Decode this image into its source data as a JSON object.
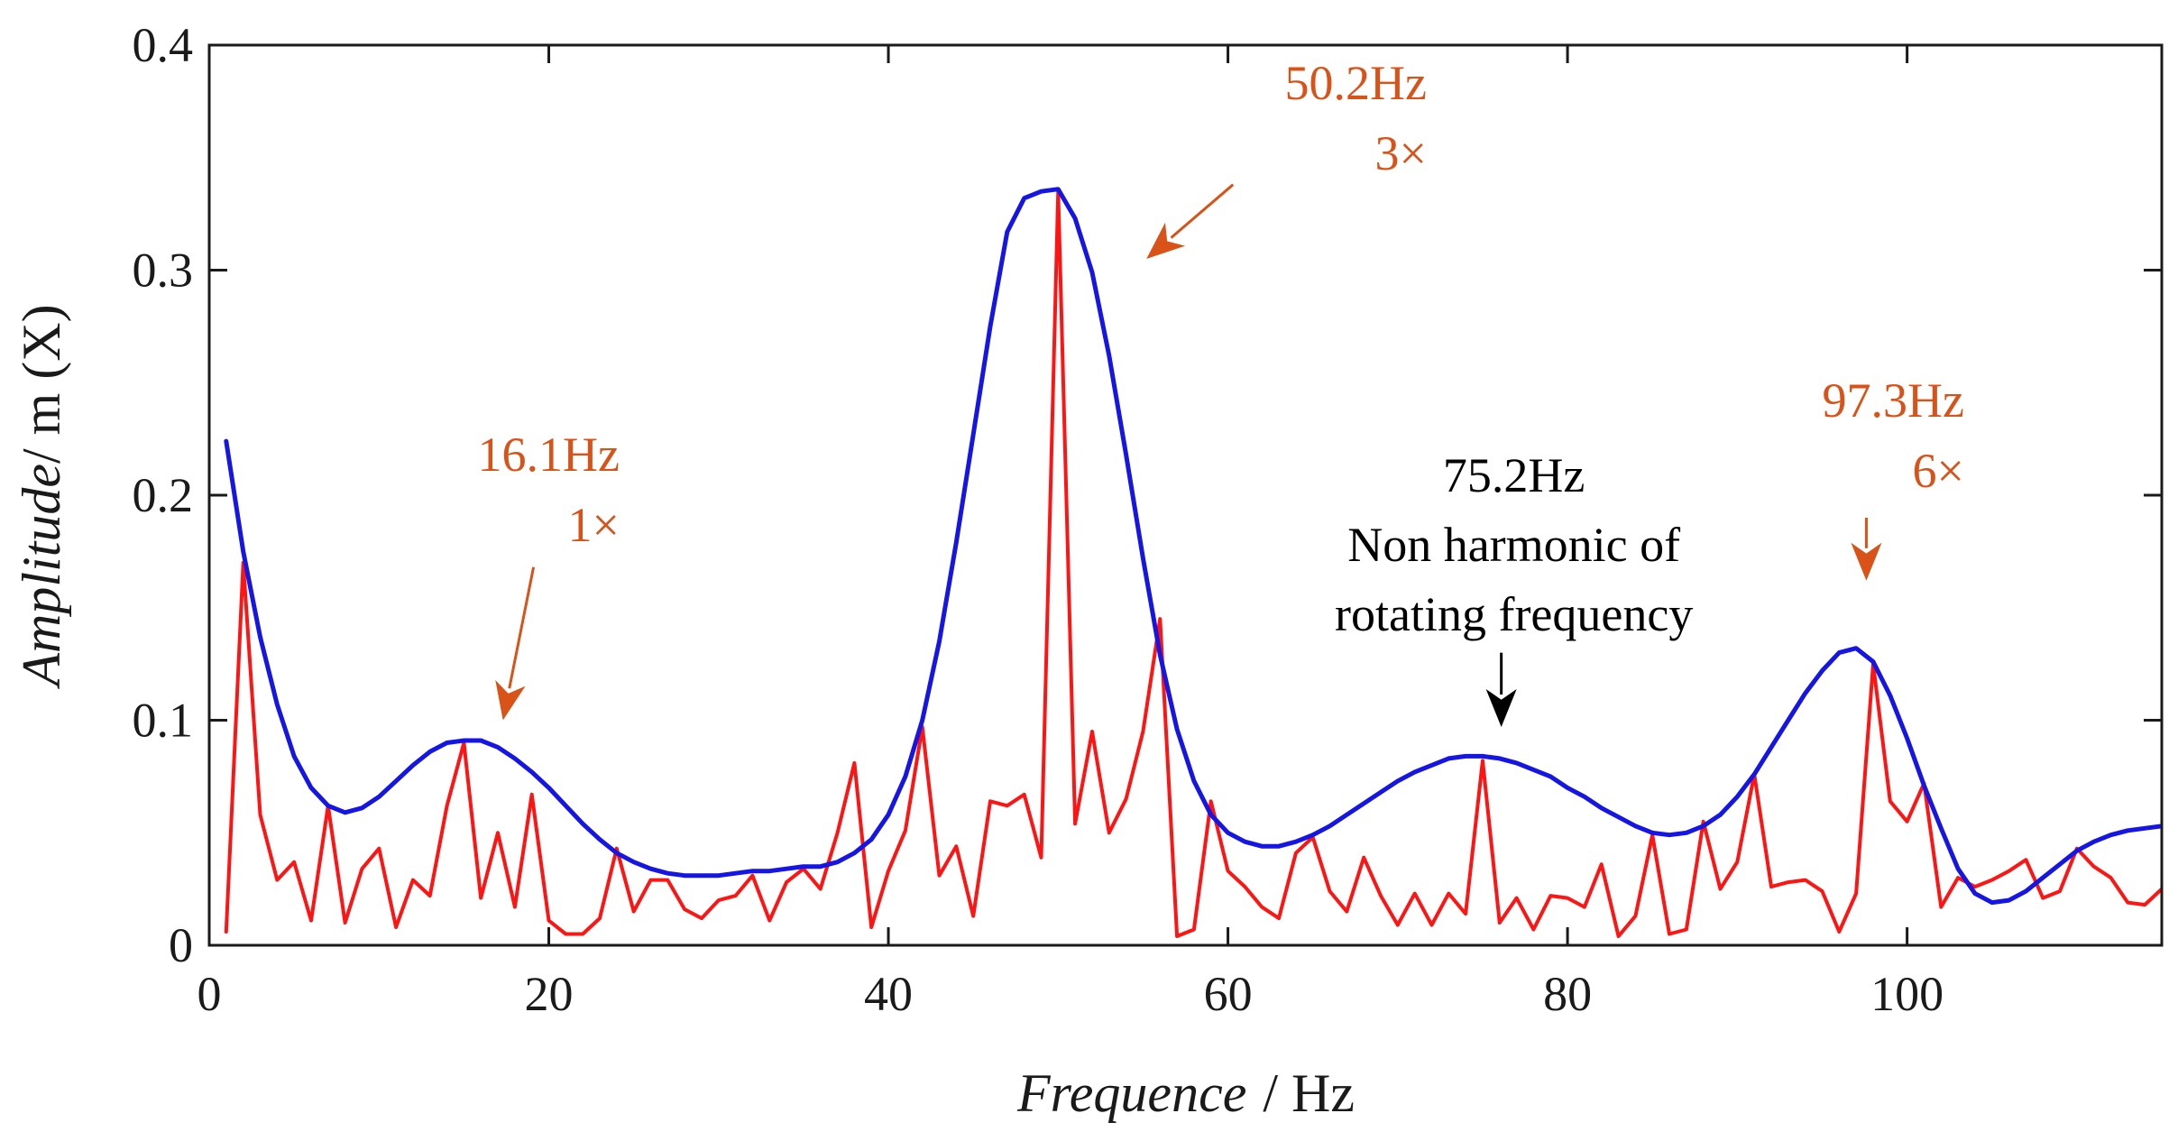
{
  "chart_data": {
    "type": "line",
    "title": "",
    "xlabel": "Frequence",
    "xlabel_unit": "/ Hz",
    "ylabel": "Amplitude",
    "ylabel_unit": "/ m (X)",
    "xlim": [
      0,
      115
    ],
    "ylim": [
      0,
      0.4
    ],
    "xticks": [
      0,
      20,
      40,
      60,
      80,
      100
    ],
    "xtick_labels": [
      "0",
      "20",
      "40",
      "60",
      "80",
      "100"
    ],
    "yticks": [
      0,
      0.1,
      0.2,
      0.3,
      0.4
    ],
    "ytick_labels": [
      "0",
      "0.1",
      "0.2",
      "0.3",
      "0.4"
    ],
    "colors": {
      "spectrum": "#ff1414",
      "envelope": "#1515e6",
      "annotation": "#d95319",
      "annotation_dark": "#000000",
      "axis": "#1a1a1a"
    },
    "series": [
      {
        "name": "spectrum",
        "x": [
          1,
          2,
          3,
          4,
          5,
          6,
          7,
          8,
          9,
          10,
          11,
          12,
          13,
          14,
          15,
          16,
          17,
          18,
          19,
          20,
          21,
          22,
          23,
          24,
          25,
          26,
          27,
          28,
          29,
          30,
          31,
          32,
          33,
          34,
          35,
          36,
          37,
          38,
          39,
          40,
          41,
          42,
          43,
          44,
          45,
          46,
          47,
          48,
          49,
          50,
          51,
          52,
          53,
          54,
          55,
          56,
          57,
          58,
          59,
          60,
          61,
          62,
          63,
          64,
          65,
          66,
          67,
          68,
          69,
          70,
          71,
          72,
          73,
          74,
          75,
          76,
          77,
          78,
          79,
          80,
          81,
          82,
          83,
          84,
          85,
          86,
          87,
          88,
          89,
          90,
          91,
          92,
          93,
          94,
          95,
          96,
          97,
          98,
          99,
          100,
          101,
          102,
          103,
          104,
          105,
          106,
          107,
          108,
          109,
          110,
          111,
          112,
          113,
          114,
          115
        ],
        "values": [
          0.006,
          0.17,
          0.058,
          0.029,
          0.037,
          0.011,
          0.062,
          0.01,
          0.034,
          0.043,
          0.008,
          0.029,
          0.022,
          0.062,
          0.09,
          0.021,
          0.05,
          0.017,
          0.067,
          0.011,
          0.005,
          0.005,
          0.012,
          0.043,
          0.015,
          0.029,
          0.029,
          0.016,
          0.012,
          0.02,
          0.022,
          0.031,
          0.011,
          0.028,
          0.034,
          0.025,
          0.05,
          0.081,
          0.008,
          0.033,
          0.051,
          0.097,
          0.031,
          0.044,
          0.013,
          0.064,
          0.062,
          0.067,
          0.039,
          0.335,
          0.054,
          0.095,
          0.05,
          0.065,
          0.095,
          0.145,
          0.004,
          0.007,
          0.064,
          0.033,
          0.026,
          0.017,
          0.012,
          0.041,
          0.048,
          0.024,
          0.015,
          0.039,
          0.022,
          0.009,
          0.023,
          0.009,
          0.023,
          0.014,
          0.082,
          0.01,
          0.021,
          0.007,
          0.022,
          0.021,
          0.017,
          0.036,
          0.004,
          0.013,
          0.049,
          0.005,
          0.007,
          0.055,
          0.025,
          0.037,
          0.076,
          0.026,
          0.028,
          0.029,
          0.024,
          0.006,
          0.023,
          0.125,
          0.064,
          0.055,
          0.072,
          0.017,
          0.03,
          0.026,
          0.029,
          0.033,
          0.038,
          0.021,
          0.024,
          0.043,
          0.035,
          0.03,
          0.019,
          0.018,
          0.025
        ]
      },
      {
        "name": "envelope",
        "x": [
          1,
          2,
          3,
          4,
          5,
          6,
          7,
          8,
          9,
          10,
          11,
          12,
          13,
          14,
          15,
          16,
          17,
          18,
          19,
          20,
          21,
          22,
          23,
          24,
          25,
          26,
          27,
          28,
          29,
          30,
          31,
          32,
          33,
          34,
          35,
          36,
          37,
          38,
          39,
          40,
          41,
          42,
          43,
          44,
          45,
          46,
          47,
          48,
          49,
          50,
          51,
          52,
          53,
          54,
          55,
          56,
          57,
          58,
          59,
          60,
          61,
          62,
          63,
          64,
          65,
          66,
          67,
          68,
          69,
          70,
          71,
          72,
          73,
          74,
          75,
          76,
          77,
          78,
          79,
          80,
          81,
          82,
          83,
          84,
          85,
          86,
          87,
          88,
          89,
          90,
          91,
          92,
          93,
          94,
          95,
          96,
          97,
          98,
          99,
          100,
          101,
          102,
          103,
          104,
          105,
          106,
          107,
          108,
          109,
          110,
          111,
          112,
          113,
          114,
          115
        ],
        "values": [
          0.224,
          0.175,
          0.137,
          0.107,
          0.084,
          0.07,
          0.062,
          0.059,
          0.061,
          0.066,
          0.073,
          0.08,
          0.086,
          0.09,
          0.091,
          0.091,
          0.088,
          0.083,
          0.077,
          0.07,
          0.062,
          0.054,
          0.047,
          0.041,
          0.037,
          0.034,
          0.032,
          0.031,
          0.031,
          0.031,
          0.032,
          0.033,
          0.033,
          0.034,
          0.035,
          0.035,
          0.037,
          0.041,
          0.047,
          0.058,
          0.075,
          0.1,
          0.135,
          0.179,
          0.227,
          0.275,
          0.317,
          0.332,
          0.335,
          0.336,
          0.323,
          0.299,
          0.262,
          0.218,
          0.172,
          0.129,
          0.096,
          0.073,
          0.058,
          0.05,
          0.046,
          0.044,
          0.044,
          0.046,
          0.049,
          0.053,
          0.058,
          0.063,
          0.068,
          0.073,
          0.077,
          0.08,
          0.083,
          0.084,
          0.084,
          0.083,
          0.081,
          0.078,
          0.075,
          0.07,
          0.066,
          0.061,
          0.057,
          0.053,
          0.05,
          0.049,
          0.05,
          0.053,
          0.058,
          0.066,
          0.076,
          0.088,
          0.1,
          0.112,
          0.122,
          0.13,
          0.132,
          0.126,
          0.111,
          0.092,
          0.071,
          0.052,
          0.034,
          0.023,
          0.019,
          0.02,
          0.024,
          0.03,
          0.036,
          0.042,
          0.046,
          0.049,
          0.051,
          0.052,
          0.053
        ]
      }
    ],
    "annotations": [
      {
        "label": "16.1Hz",
        "harmonic": "1×",
        "color": "annotation",
        "tip": [
          17.3,
          0.1
        ],
        "tail": [
          19.1,
          0.168
        ]
      },
      {
        "label": "50.2Hz",
        "harmonic": "3×",
        "color": "annotation",
        "tip": [
          55.2,
          0.305
        ],
        "tail": [
          60.3,
          0.338
        ]
      },
      {
        "label": "75.2Hz",
        "lines": [
          "Non harmonic of",
          "rotating frequency"
        ],
        "color": "annotation_dark",
        "tip": [
          76.1,
          0.097
        ],
        "tail": [
          76.1,
          0.13
        ]
      },
      {
        "label": "97.3Hz",
        "harmonic": "6×",
        "color": "annotation",
        "tip": [
          97.6,
          0.162
        ],
        "tail": [
          97.6,
          0.19
        ]
      }
    ]
  }
}
